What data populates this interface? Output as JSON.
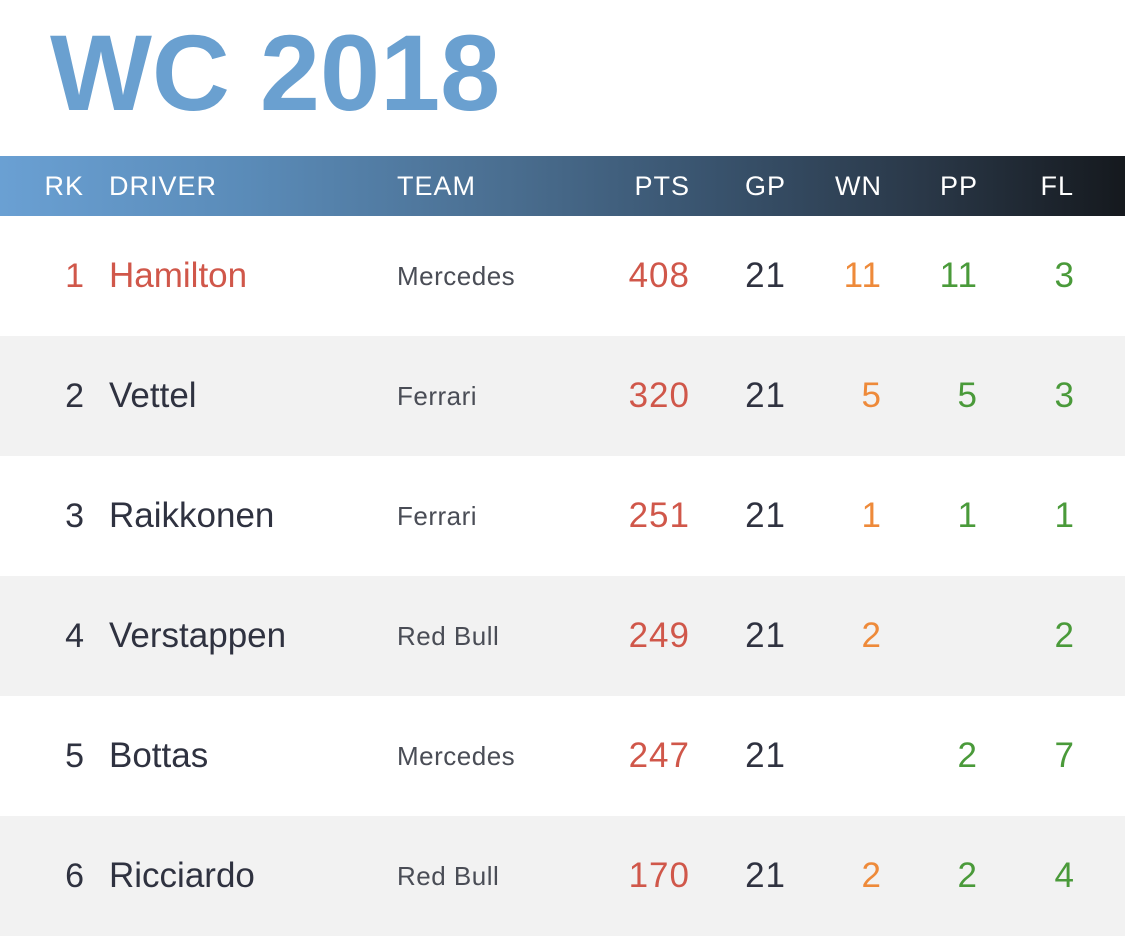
{
  "title": "WC 2018",
  "columns": {
    "rk": "RK",
    "driver": "DRIVER",
    "team": "TEAM",
    "pts": "PTS",
    "gp": "GP",
    "wn": "WN",
    "pp": "PP",
    "fl": "FL"
  },
  "rows": [
    {
      "rk": "1",
      "driver": "Hamilton",
      "team": "Mercedes",
      "pts": "408",
      "gp": "21",
      "wn": "11",
      "pp": "11",
      "fl": "3"
    },
    {
      "rk": "2",
      "driver": "Vettel",
      "team": "Ferrari",
      "pts": "320",
      "gp": "21",
      "wn": "5",
      "pp": "5",
      "fl": "3"
    },
    {
      "rk": "3",
      "driver": "Raikkonen",
      "team": "Ferrari",
      "pts": "251",
      "gp": "21",
      "wn": "1",
      "pp": "1",
      "fl": "1"
    },
    {
      "rk": "4",
      "driver": "Verstappen",
      "team": "Red Bull",
      "pts": "249",
      "gp": "21",
      "wn": "2",
      "pp": "",
      "fl": "2"
    },
    {
      "rk": "5",
      "driver": "Bottas",
      "team": "Mercedes",
      "pts": "247",
      "gp": "21",
      "wn": "",
      "pp": "2",
      "fl": "7"
    },
    {
      "rk": "6",
      "driver": "Ricciardo",
      "team": "Red Bull",
      "pts": "170",
      "gp": "21",
      "wn": "2",
      "pp": "2",
      "fl": "4"
    }
  ],
  "colors": {
    "title": "#6aa0d0",
    "points": "#d0574a",
    "wins": "#ee8a3a",
    "poles_fastest_laps": "#4a9a3a",
    "leader": "#d0574a",
    "text": "#2f3240",
    "stripe": "#f2f2f2"
  }
}
